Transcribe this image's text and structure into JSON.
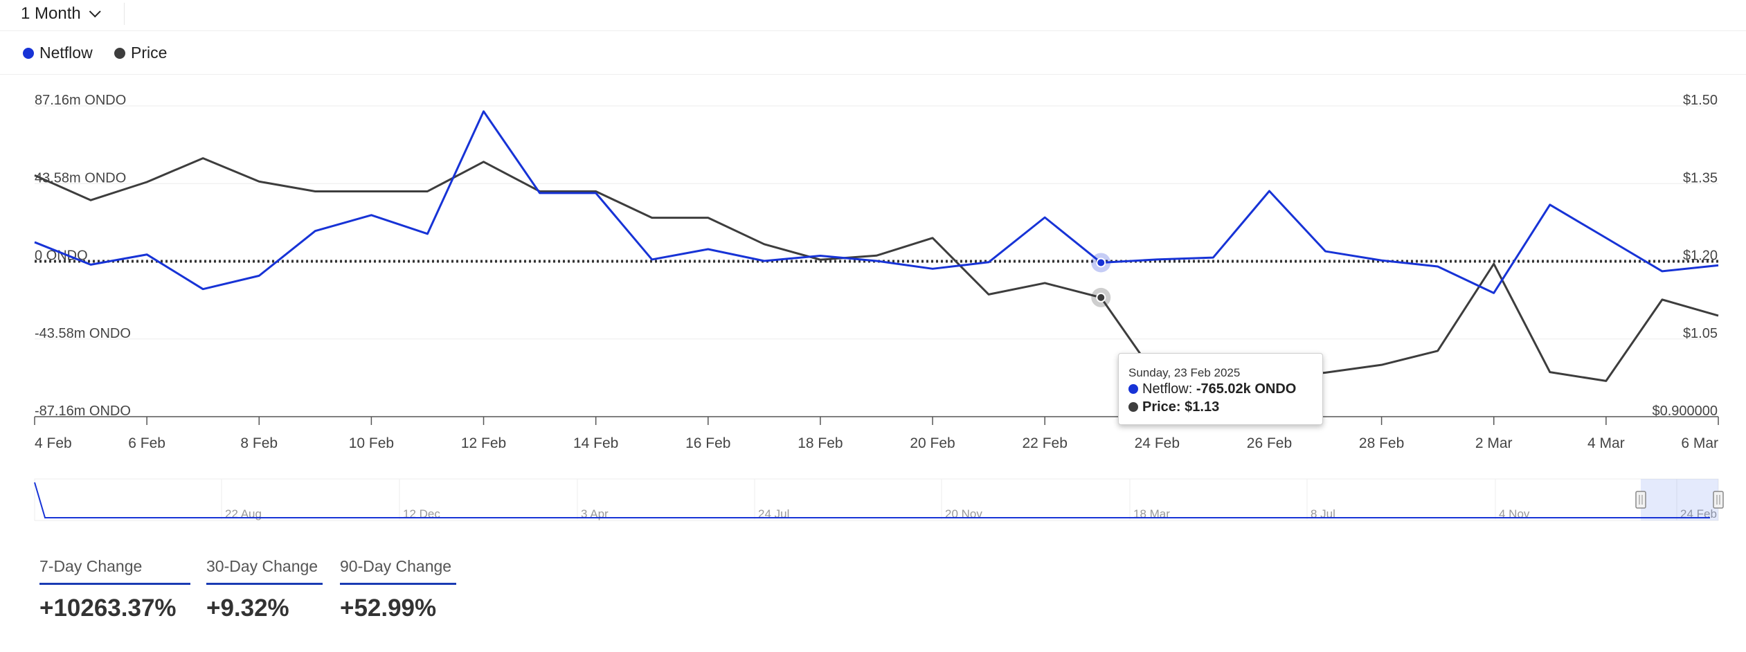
{
  "toolbar": {
    "period_label": "1 Month"
  },
  "legend": [
    {
      "name": "Netflow",
      "color": "#1733d6"
    },
    {
      "name": "Price",
      "color": "#3d3d3d"
    }
  ],
  "chart_data": {
    "type": "line",
    "title": "",
    "x": [
      "4 Feb",
      "5 Feb",
      "6 Feb",
      "7 Feb",
      "8 Feb",
      "9 Feb",
      "10 Feb",
      "11 Feb",
      "12 Feb",
      "13 Feb",
      "14 Feb",
      "15 Feb",
      "16 Feb",
      "17 Feb",
      "18 Feb",
      "19 Feb",
      "20 Feb",
      "21 Feb",
      "22 Feb",
      "23 Feb",
      "24 Feb",
      "25 Feb",
      "26 Feb",
      "27 Feb",
      "28 Feb",
      "1 Mar",
      "2 Mar",
      "3 Mar",
      "4 Mar",
      "5 Mar",
      "6 Mar"
    ],
    "x_tick_labels": [
      "4 Feb",
      "6 Feb",
      "8 Feb",
      "10 Feb",
      "12 Feb",
      "14 Feb",
      "16 Feb",
      "18 Feb",
      "20 Feb",
      "22 Feb",
      "24 Feb",
      "26 Feb",
      "28 Feb",
      "2 Mar",
      "4 Mar",
      "6 Mar"
    ],
    "y_left_ticks": [
      "87.16m ONDO",
      "43.58m ONDO",
      "0 ONDO",
      "-43.58m ONDO",
      "-87.16m ONDO"
    ],
    "y_left_range": [
      -87.16,
      87.16
    ],
    "y_left_unit": "m ONDO",
    "y_right_ticks": [
      "$1.50",
      "$1.35",
      "$1.20",
      "$1.05",
      "$0.900000"
    ],
    "y_right_range": [
      0.9,
      1.5
    ],
    "series": [
      {
        "name": "Netflow",
        "axis": "left",
        "color": "#1733d6",
        "values": [
          10.7,
          -1.9,
          3.8,
          -15.6,
          -8.1,
          17.0,
          25.9,
          15.4,
          84.1,
          38.3,
          38.3,
          1.0,
          6.8,
          0.2,
          3.1,
          0.2,
          -4.2,
          -0.5,
          24.6,
          -0.765,
          1.0,
          2.1,
          39.4,
          5.6,
          0.5,
          -2.9,
          -17.8,
          31.7,
          13.1,
          -5.6,
          -2.3
        ]
      },
      {
        "name": "Price",
        "axis": "right",
        "color": "#3d3d3d",
        "values": [
          1.366,
          1.318,
          1.353,
          1.399,
          1.354,
          1.335,
          1.335,
          1.335,
          1.392,
          1.335,
          1.335,
          1.284,
          1.284,
          1.233,
          1.203,
          1.211,
          1.245,
          1.136,
          1.158,
          1.13,
          0.975,
          0.963,
          0.975,
          0.985,
          1.0,
          1.027,
          1.195,
          0.986,
          0.969,
          1.126,
          1.095
        ]
      }
    ],
    "zero_line": {
      "style": "dotted",
      "value": 0
    },
    "highlight_index": 19,
    "grid": true,
    "legend_position": "top-left",
    "navigator": {
      "labels": [
        "22 Aug",
        "12 Dec",
        "3 Apr",
        "24 Jul",
        "20 Nov",
        "18 Mar",
        "8 Jul",
        "4 Nov",
        "24 Feb"
      ]
    }
  },
  "tooltip": {
    "date": "Sunday, 23 Feb 2025",
    "netflow_label": "Netflow: ",
    "netflow_value": "-765.02k ONDO",
    "price_label": "Price: ",
    "price_value": "$1.13"
  },
  "stats": [
    {
      "label": "7-Day Change",
      "value": "+10263.37%"
    },
    {
      "label": "30-Day Change",
      "value": "+9.32%"
    },
    {
      "label": "90-Day Change",
      "value": "+52.99%"
    }
  ]
}
